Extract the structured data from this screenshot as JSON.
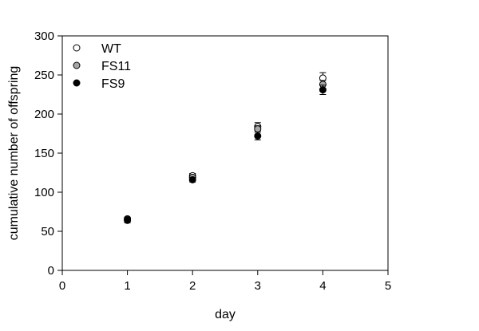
{
  "chart_data": {
    "type": "scatter",
    "xlabel": "day",
    "ylabel": "cumulative number of offspring",
    "xlim": [
      0,
      5
    ],
    "ylim": [
      0,
      300
    ],
    "x_ticks": [
      "0",
      "1",
      "2",
      "3",
      "4",
      "5"
    ],
    "y_ticks": [
      "0",
      "50",
      "100",
      "150",
      "200",
      "250",
      "300"
    ],
    "grid": false,
    "legend_position": "top-left",
    "error_bars": true,
    "series": [
      {
        "name": "WT",
        "marker": "open-circle",
        "fill": "#ffffff",
        "points": [
          {
            "x": 1,
            "y": 66,
            "err": 2
          },
          {
            "x": 2,
            "y": 121,
            "err": 3
          },
          {
            "x": 3,
            "y": 184,
            "err": 5
          },
          {
            "x": 4,
            "y": 246,
            "err": 7
          }
        ]
      },
      {
        "name": "FS11",
        "marker": "gray-circle",
        "fill": "#a6a6a6",
        "points": [
          {
            "x": 1,
            "y": 65,
            "err": 2
          },
          {
            "x": 2,
            "y": 119,
            "err": 3
          },
          {
            "x": 3,
            "y": 181,
            "err": 4
          },
          {
            "x": 4,
            "y": 238,
            "err": 5
          }
        ]
      },
      {
        "name": "FS9",
        "marker": "filled-circle",
        "fill": "#000000",
        "points": [
          {
            "x": 1,
            "y": 64,
            "err": 3
          },
          {
            "x": 2,
            "y": 116,
            "err": 3
          },
          {
            "x": 3,
            "y": 172,
            "err": 5
          },
          {
            "x": 4,
            "y": 231,
            "err": 6
          }
        ]
      }
    ]
  }
}
